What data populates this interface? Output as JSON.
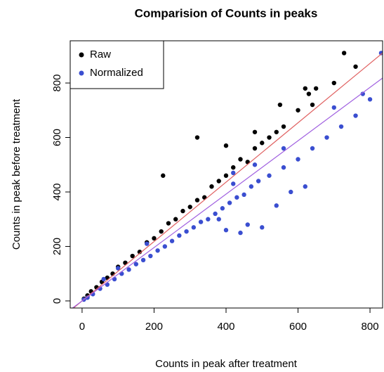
{
  "chart_data": {
    "type": "scatter",
    "title": "Comparision of Counts in peaks",
    "x_label": "Counts in peak after treatment",
    "y_label": "Counts in peak before treatment",
    "xlim": [
      -33,
      835
    ],
    "ylim": [
      -26,
      955
    ],
    "xticks": [
      0,
      200,
      400,
      600,
      800
    ],
    "yticks": [
      0,
      200,
      400,
      600,
      800
    ],
    "legend_position": "top-left",
    "lines": [
      {
        "color": "#e06060",
        "intercept": 0,
        "slope": 1.09
      },
      {
        "color": "#a060e0",
        "intercept": 0,
        "slope": 0.98
      }
    ],
    "series": [
      {
        "name": "Raw",
        "color": "#000000",
        "x": [
          5,
          15,
          25,
          40,
          55,
          70,
          85,
          100,
          120,
          140,
          160,
          180,
          200,
          220,
          240,
          260,
          280,
          300,
          320,
          340,
          360,
          380,
          400,
          420,
          440,
          460,
          480,
          500,
          520,
          540,
          560,
          600,
          630,
          640,
          700,
          728,
          760,
          225,
          320,
          400,
          480,
          550,
          620,
          650
        ],
        "values": [
          8,
          20,
          35,
          50,
          70,
          85,
          100,
          125,
          140,
          165,
          180,
          215,
          230,
          255,
          285,
          300,
          330,
          345,
          370,
          380,
          420,
          440,
          460,
          490,
          520,
          510,
          560,
          580,
          600,
          620,
          640,
          700,
          760,
          720,
          800,
          910,
          860,
          460,
          600,
          570,
          620,
          720,
          780,
          780
        ]
      },
      {
        "name": "Normalized",
        "color": "#3a4ed0",
        "x": [
          5,
          15,
          30,
          50,
          70,
          90,
          110,
          130,
          150,
          170,
          190,
          210,
          230,
          250,
          270,
          290,
          310,
          330,
          350,
          370,
          390,
          410,
          430,
          450,
          470,
          490,
          520,
          560,
          600,
          640,
          680,
          720,
          760,
          800,
          831,
          780,
          700,
          560,
          480,
          420,
          380,
          400,
          440,
          460,
          500,
          540,
          580,
          620,
          420,
          180,
          100,
          60
        ],
        "values": [
          5,
          12,
          25,
          45,
          60,
          80,
          100,
          115,
          135,
          150,
          165,
          185,
          200,
          220,
          240,
          255,
          270,
          290,
          300,
          320,
          340,
          360,
          380,
          390,
          420,
          440,
          460,
          490,
          520,
          560,
          600,
          640,
          680,
          740,
          910,
          760,
          710,
          560,
          500,
          430,
          300,
          260,
          250,
          280,
          270,
          350,
          400,
          420,
          470,
          210,
          120,
          80
        ]
      }
    ]
  }
}
